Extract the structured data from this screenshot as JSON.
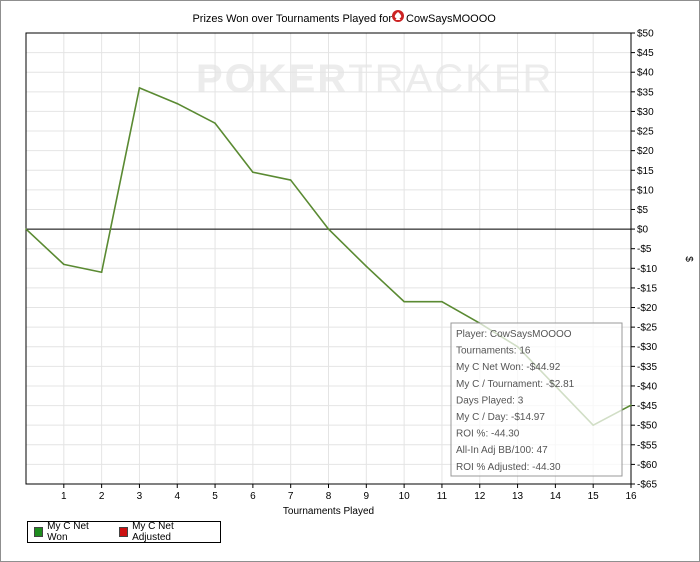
{
  "chart_data": {
    "type": "line",
    "title": "Prizes Won over Tournaments Played for",
    "player": "CowSaysMOOOO",
    "watermark": {
      "part1": "POKER",
      "part2": "TRACKER"
    },
    "xlabel": "Tournaments Played",
    "ylabel": "$",
    "xlim": [
      0,
      16
    ],
    "ylim": [
      -65,
      50
    ],
    "x_ticks": [
      1,
      2,
      3,
      4,
      5,
      6,
      7,
      8,
      9,
      10,
      11,
      12,
      13,
      14,
      15,
      16
    ],
    "y_ticks": [
      {
        "value": 50,
        "label": "$50"
      },
      {
        "value": 45,
        "label": "$45"
      },
      {
        "value": 40,
        "label": "$40"
      },
      {
        "value": 35,
        "label": "$35"
      },
      {
        "value": 30,
        "label": "$30"
      },
      {
        "value": 25,
        "label": "$25"
      },
      {
        "value": 20,
        "label": "$20"
      },
      {
        "value": 15,
        "label": "$15"
      },
      {
        "value": 10,
        "label": "$10"
      },
      {
        "value": 5,
        "label": "$5"
      },
      {
        "value": 0,
        "label": "$0"
      },
      {
        "value": -5,
        "label": "-$5"
      },
      {
        "value": -10,
        "label": "-$10"
      },
      {
        "value": -15,
        "label": "-$15"
      },
      {
        "value": -20,
        "label": "-$20"
      },
      {
        "value": -25,
        "label": "-$25"
      },
      {
        "value": -30,
        "label": "-$30"
      },
      {
        "value": -35,
        "label": "-$35"
      },
      {
        "value": -40,
        "label": "-$40"
      },
      {
        "value": -45,
        "label": "-$45"
      },
      {
        "value": -50,
        "label": "-$50"
      },
      {
        "value": -55,
        "label": "-$55"
      },
      {
        "value": -60,
        "label": "-$60"
      },
      {
        "value": -65,
        "label": "-$65"
      }
    ],
    "grid": true,
    "legend_position": "bottom-left",
    "series": [
      {
        "name": "My C Net Won",
        "color": "#5a8a32",
        "x": [
          0,
          1,
          2,
          3,
          4,
          5,
          6,
          7,
          8,
          9,
          10,
          11,
          12,
          13,
          14,
          15,
          16
        ],
        "values": [
          0,
          -9,
          -11,
          36,
          32,
          27,
          14.5,
          12.5,
          0,
          -9.5,
          -18.5,
          -18.5,
          -24,
          -30,
          -40,
          -50,
          -44.9
        ]
      },
      {
        "name": "My C Net Adjusted",
        "color": "#cc1111",
        "x": [],
        "values": []
      }
    ],
    "tooltip": {
      "lines": [
        "Player: CowSaysMOOOO",
        "Tournaments: 16",
        "My C Net Won: -$44.92",
        "My C / Tournament: -$2.81",
        "Days Played: 3",
        "My C / Day: -$14.97",
        "ROI %: -44.30",
        "All-In Adj BB/100: 47",
        "ROI % Adjusted: -44.30"
      ]
    }
  },
  "legend": {
    "items": [
      {
        "label": "My C Net Won",
        "color": "#1e8c1e"
      },
      {
        "label": "My C Net Adjusted",
        "color": "#cc1111"
      }
    ]
  },
  "icons": {
    "title_icon": "spade-icon"
  }
}
